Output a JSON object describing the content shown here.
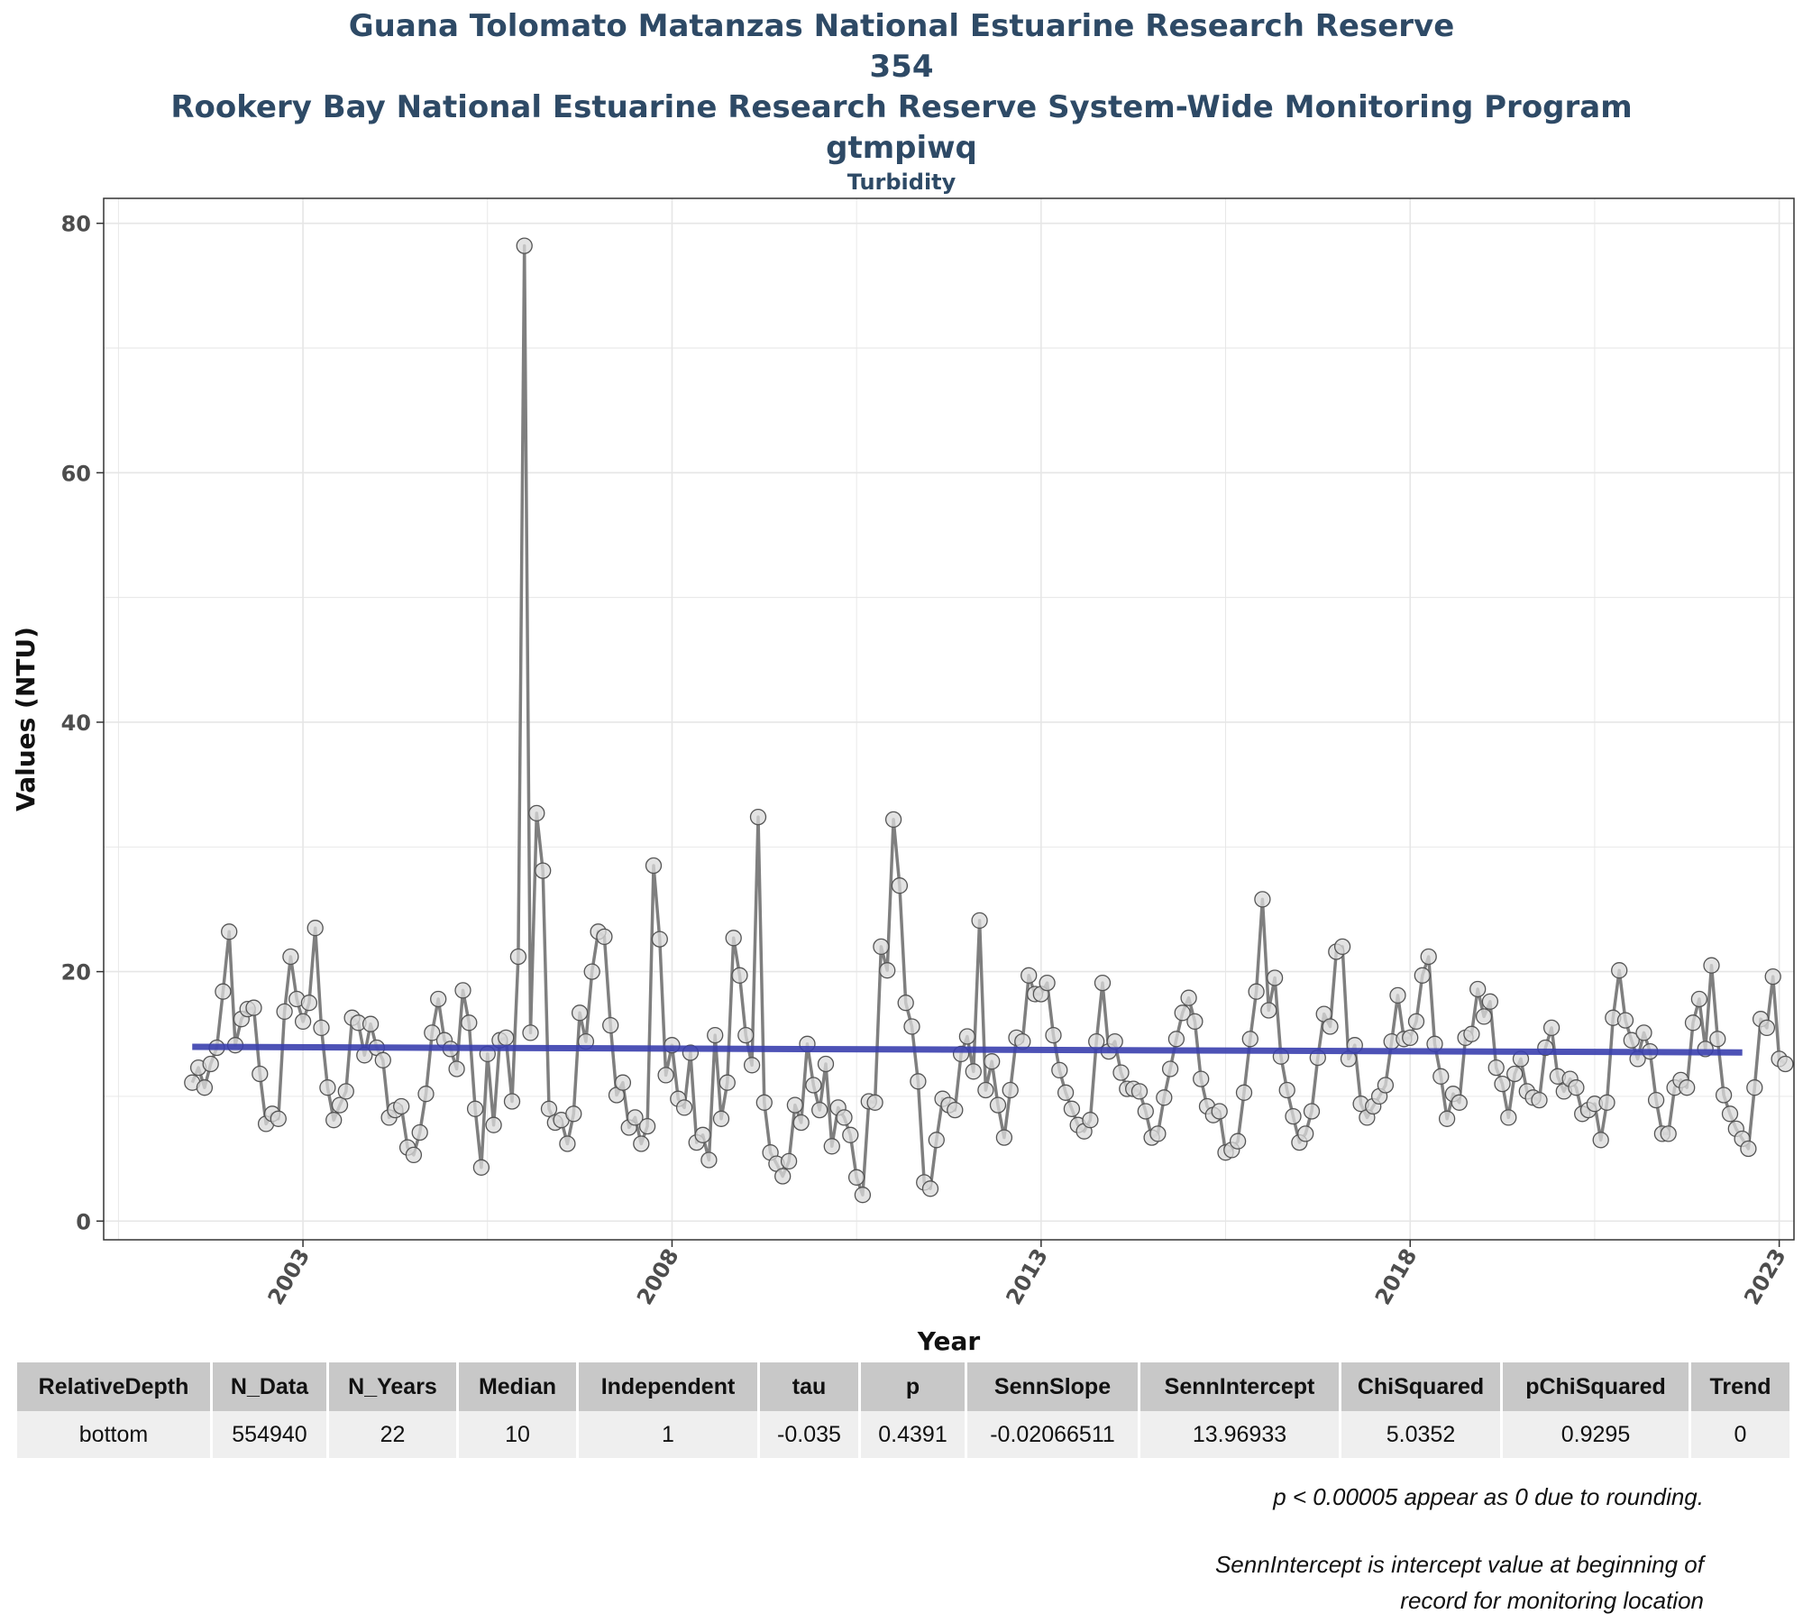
{
  "titles": {
    "line1": "Guana Tolomato Matanzas National Estuarine Research Reserve",
    "line2": "354",
    "line3": "Rookery Bay National Estuarine Research Reserve System-Wide Monitoring Program",
    "line4": "gtmpiwq",
    "line5": "Turbidity"
  },
  "chart_data": {
    "type": "line",
    "title": "Turbidity",
    "xlabel": "Year",
    "ylabel": "Values (NTU)",
    "xlim": [
      2000.3,
      2023.2
    ],
    "ylim": [
      -1.5,
      82
    ],
    "x_ticks": [
      2003,
      2008,
      2013,
      2018,
      2023
    ],
    "y_ticks": [
      0,
      20,
      40,
      60,
      80
    ],
    "grid": true,
    "legend": "none",
    "series": [
      {
        "kind": "monthly-values",
        "color": "#7f7f7f",
        "x_start": 2001.5,
        "x_step": 0.08333,
        "values": [
          11.1,
          12.3,
          10.7,
          12.6,
          13.9,
          18.4,
          23.2,
          14.1,
          16.2,
          17.0,
          17.1,
          11.8,
          7.8,
          8.6,
          8.2,
          16.8,
          21.2,
          17.8,
          16.0,
          17.5,
          23.5,
          15.5,
          10.7,
          8.1,
          9.3,
          10.4,
          16.3,
          15.9,
          13.3,
          15.8,
          13.9,
          12.9,
          8.3,
          8.9,
          9.2,
          5.9,
          5.3,
          7.1,
          10.2,
          15.1,
          17.8,
          14.5,
          13.8,
          12.2,
          18.5,
          15.9,
          9.0,
          4.3,
          13.4,
          7.7,
          14.5,
          14.7,
          9.6,
          21.2,
          78.2,
          15.1,
          32.7,
          28.1,
          9.0,
          7.9,
          8.1,
          6.2,
          8.6,
          16.7,
          14.4,
          20.0,
          23.2,
          22.8,
          15.7,
          10.1,
          11.1,
          7.5,
          8.3,
          6.2,
          7.6,
          28.5,
          22.6,
          11.7,
          14.1,
          9.8,
          9.1,
          13.5,
          6.3,
          6.9,
          4.9,
          14.9,
          8.2,
          11.1,
          22.7,
          19.7,
          14.9,
          12.5,
          32.4,
          9.5,
          5.5,
          4.6,
          3.6,
          4.8,
          9.3,
          7.9,
          14.2,
          10.9,
          8.9,
          12.6,
          6.0,
          9.1,
          8.3,
          6.9,
          3.5,
          2.1,
          9.6,
          9.5,
          22.0,
          20.1,
          32.2,
          26.9,
          17.5,
          15.6,
          11.2,
          3.1,
          2.6,
          6.5,
          9.8,
          9.3,
          8.9,
          13.4,
          14.8,
          12.0,
          24.1,
          10.5,
          12.8,
          9.3,
          6.7,
          10.5,
          14.7,
          14.4,
          19.7,
          18.2,
          18.2,
          19.1,
          14.9,
          12.1,
          10.3,
          9.0,
          7.7,
          7.2,
          8.1,
          14.4,
          19.1,
          13.6,
          14.4,
          11.9,
          10.6,
          10.6,
          10.4,
          8.8,
          6.7,
          7.0,
          9.9,
          12.2,
          14.6,
          16.7,
          17.9,
          16.0,
          11.4,
          9.2,
          8.5,
          8.8,
          5.5,
          5.7,
          6.4,
          10.3,
          14.6,
          18.4,
          25.8,
          16.9,
          19.5,
          13.2,
          10.5,
          8.4,
          6.3,
          7.0,
          8.8,
          13.1,
          16.6,
          15.6,
          21.6,
          22.0,
          13.0,
          14.1,
          9.4,
          8.3,
          9.2,
          10.0,
          10.9,
          14.4,
          18.1,
          14.6,
          14.7,
          16.0,
          19.7,
          21.2,
          14.2,
          11.6,
          8.2,
          10.2,
          9.5,
          14.7,
          15.0,
          18.6,
          16.4,
          17.6,
          12.3,
          11.0,
          8.3,
          11.8,
          13.0,
          10.4,
          9.9,
          9.7,
          13.9,
          15.5,
          11.6,
          10.4,
          11.4,
          10.7,
          8.6,
          8.9,
          9.4,
          6.5,
          9.5,
          16.3,
          20.1,
          16.1,
          14.5,
          13.0,
          15.1,
          13.6,
          9.7,
          7.0,
          7.0,
          10.7,
          11.3,
          10.7,
          15.9,
          17.8,
          13.8,
          20.5,
          14.6,
          10.1,
          8.6,
          7.4,
          6.6,
          5.8,
          10.7,
          16.2,
          15.5,
          19.6,
          13.0,
          12.6
        ]
      },
      {
        "kind": "trend",
        "color": "#3a3fae",
        "x": [
          2001.5,
          2022.5
        ],
        "y": [
          13.97,
          13.52
        ]
      }
    ]
  },
  "table": {
    "headers": [
      "RelativeDepth",
      "N_Data",
      "N_Years",
      "Median",
      "Independent",
      "tau",
      "p",
      "SennSlope",
      "SennIntercept",
      "ChiSquared",
      "pChiSquared",
      "Trend"
    ],
    "row": [
      "bottom",
      "554940",
      "22",
      "10",
      "1",
      "-0.035",
      "0.4391",
      "-0.02066511",
      "13.96933",
      "5.0352",
      "0.9295",
      "0"
    ]
  },
  "notes": {
    "note1": "p < 0.00005 appear as 0 due to rounding.",
    "note2_line1": "SennIntercept is intercept value at beginning of",
    "note2_line2": "record for monitoring location"
  }
}
